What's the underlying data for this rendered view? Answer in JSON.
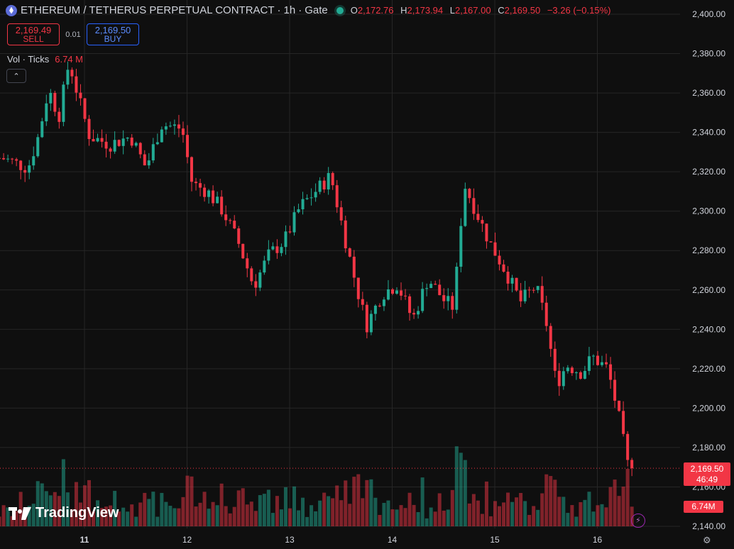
{
  "header": {
    "symbol": "ETHEREUM / TETHERUS PERPETUAL CONTRACT",
    "interval": "1h",
    "exchange": "Gate",
    "separator": "·",
    "ohlc": {
      "o_label": "O",
      "o": "2,172.76",
      "h_label": "H",
      "h": "2,173.94",
      "l_label": "L",
      "l": "2,167.00",
      "c_label": "C",
      "c": "2,169.50",
      "change": "−3.26 (−0.15%)"
    }
  },
  "trade": {
    "sell_price": "2,169.49",
    "sell_label": "SELL",
    "spread": "0.01",
    "buy_price": "2,169.50",
    "buy_label": "BUY"
  },
  "volume_legend": {
    "label": "Vol · Ticks",
    "value": "6.74 M"
  },
  "price_tag": {
    "price": "2,169.50",
    "countdown": "46:49"
  },
  "volume_tag": "6.74M",
  "logo_text": "TradingView",
  "colors": {
    "up": "#22ab94",
    "down": "#f23645",
    "background": "#0f0f0f",
    "grid": "#262626",
    "text": "#d1d4dc"
  },
  "chart_data": {
    "type": "candlestick",
    "y_axis": {
      "ticks": [
        "2,400.00",
        "2,380.00",
        "2,360.00",
        "2,340.00",
        "2,320.00",
        "2,300.00",
        "2,280.00",
        "2,260.00",
        "2,240.00",
        "2,220.00",
        "2,200.00",
        "2,180.00",
        "2,160.00",
        "2,140.00"
      ],
      "range": [
        2140,
        2400
      ]
    },
    "x_axis": {
      "ticks": [
        11,
        12,
        13,
        14,
        15,
        16
      ]
    },
    "last_price": 2169.5,
    "close_path": [
      [
        10.2,
        2327
      ],
      [
        10.45,
        2322
      ],
      [
        10.55,
        2338
      ],
      [
        10.65,
        2362
      ],
      [
        10.75,
        2348
      ],
      [
        10.85,
        2376
      ],
      [
        10.95,
        2356
      ],
      [
        11.05,
        2338
      ],
      [
        11.25,
        2334
      ],
      [
        11.45,
        2338
      ],
      [
        11.6,
        2322
      ],
      [
        11.75,
        2344
      ],
      [
        11.95,
        2342
      ],
      [
        12.05,
        2314
      ],
      [
        12.2,
        2310
      ],
      [
        12.35,
        2300
      ],
      [
        12.5,
        2284
      ],
      [
        12.65,
        2262
      ],
      [
        12.8,
        2278
      ],
      [
        12.95,
        2285
      ],
      [
        13.1,
        2302
      ],
      [
        13.25,
        2310
      ],
      [
        13.4,
        2318
      ],
      [
        13.55,
        2284
      ],
      [
        13.65,
        2262
      ],
      [
        13.75,
        2242
      ],
      [
        13.9,
        2258
      ],
      [
        14.05,
        2263
      ],
      [
        14.2,
        2245
      ],
      [
        14.35,
        2266
      ],
      [
        14.5,
        2255
      ],
      [
        14.6,
        2251
      ],
      [
        14.7,
        2314
      ],
      [
        14.8,
        2302
      ],
      [
        14.95,
        2284
      ],
      [
        15.1,
        2270
      ],
      [
        15.25,
        2254
      ],
      [
        15.4,
        2262
      ],
      [
        15.5,
        2244
      ],
      [
        15.6,
        2212
      ],
      [
        15.7,
        2222
      ],
      [
        15.85,
        2218
      ],
      [
        15.95,
        2226
      ],
      [
        16.1,
        2220
      ],
      [
        16.2,
        2198
      ],
      [
        16.3,
        2170
      ]
    ],
    "volume_unit": "M"
  }
}
